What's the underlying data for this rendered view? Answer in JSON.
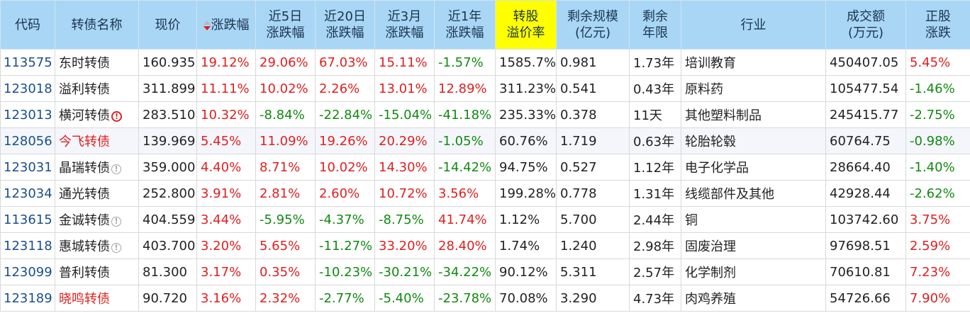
{
  "headers": {
    "code": "代码",
    "name": "转债名称",
    "price": "现价",
    "chg": "涨跌幅",
    "chg5d_1": "近5日",
    "chg5d_2": "涨跌幅",
    "chg20d_1": "近20日",
    "chg20d_2": "涨跌幅",
    "chg3m_1": "近3月",
    "chg3m_2": "涨跌幅",
    "chg1y_1": "近1年",
    "chg1y_2": "涨跌幅",
    "premium_1": "转股",
    "premium_2": "溢价率",
    "scale_1": "剩余规模",
    "scale_2": "(亿元)",
    "years_1": "剩余",
    "years_2": "年限",
    "industry": "行业",
    "volume_1": "成交额",
    "volume_2": "(万元)",
    "stock_1": "正股",
    "stock_2": "涨跌"
  },
  "colors": {
    "header_bg": "#a9d6f5",
    "highlight": "#ffff00",
    "up": "#e02020",
    "down": "#108a10",
    "code": "#1a4f8c"
  },
  "rows": [
    {
      "code": "113575",
      "name": "东时转债",
      "price": "160.935",
      "chg": "19.12%",
      "chg5d": "29.06%",
      "chg20d": "67.03%",
      "chg3m": "15.11%",
      "chg1y": "-1.57%",
      "premium": "1585.7%",
      "scale": "0.981",
      "years": "1.73年",
      "industry": "培训教育",
      "volume": "450407.05",
      "stock": "5.45%"
    },
    {
      "code": "123018",
      "name": "溢利转债",
      "price": "311.899",
      "chg": "11.11%",
      "chg5d": "10.02%",
      "chg20d": "2.26%",
      "chg3m": "13.01%",
      "chg1y": "12.89%",
      "premium": "311.23%",
      "scale": "0.541",
      "years": "0.43年",
      "industry": "原料药",
      "volume": "105477.54",
      "stock": "-1.46%"
    },
    {
      "code": "123013",
      "name": "横河转债",
      "price": "283.510",
      "chg": "10.32%",
      "chg5d": "-8.84%",
      "chg20d": "-22.84%",
      "chg3m": "-15.04%",
      "chg1y": "-41.18%",
      "premium": "235.33%",
      "scale": "0.378",
      "years": "11天",
      "industry": "其他塑料制品",
      "volume": "245415.77",
      "stock": "-2.75%"
    },
    {
      "code": "128056",
      "name": "今飞转债",
      "price": "139.969",
      "chg": "5.45%",
      "chg5d": "11.09%",
      "chg20d": "19.26%",
      "chg3m": "20.29%",
      "chg1y": "-1.05%",
      "premium": "60.76%",
      "scale": "1.719",
      "years": "0.63年",
      "industry": "轮胎轮毂",
      "volume": "60764.75",
      "stock": "-0.98%"
    },
    {
      "code": "123031",
      "name": "晶瑞转债",
      "price": "359.000",
      "chg": "4.40%",
      "chg5d": "8.71%",
      "chg20d": "10.02%",
      "chg3m": "14.30%",
      "chg1y": "-14.42%",
      "premium": "94.75%",
      "scale": "0.527",
      "years": "1.12年",
      "industry": "电子化学品",
      "volume": "28664.40",
      "stock": "-1.40%"
    },
    {
      "code": "123034",
      "name": "通光转债",
      "price": "252.800",
      "chg": "3.91%",
      "chg5d": "2.81%",
      "chg20d": "2.60%",
      "chg3m": "10.72%",
      "chg1y": "3.56%",
      "premium": "199.28%",
      "scale": "0.778",
      "years": "1.31年",
      "industry": "线缆部件及其他",
      "volume": "42928.44",
      "stock": "-2.62%"
    },
    {
      "code": "113615",
      "name": "金诚转债",
      "price": "404.559",
      "chg": "3.44%",
      "chg5d": "-5.95%",
      "chg20d": "-4.37%",
      "chg3m": "-8.75%",
      "chg1y": "41.74%",
      "premium": "1.12%",
      "scale": "5.700",
      "years": "2.44年",
      "industry": "铜",
      "volume": "103742.60",
      "stock": "3.75%"
    },
    {
      "code": "123118",
      "name": "惠城转债",
      "price": "403.700",
      "chg": "3.20%",
      "chg5d": "5.65%",
      "chg20d": "-11.27%",
      "chg3m": "33.20%",
      "chg1y": "28.40%",
      "premium": "1.74%",
      "scale": "1.240",
      "years": "2.98年",
      "industry": "固废治理",
      "volume": "97698.51",
      "stock": "2.59%"
    },
    {
      "code": "123099",
      "name": "普利转债",
      "price": "81.300",
      "chg": "3.17%",
      "chg5d": "0.35%",
      "chg20d": "-10.23%",
      "chg3m": "-30.21%",
      "chg1y": "-34.22%",
      "premium": "90.12%",
      "scale": "5.311",
      "years": "2.57年",
      "industry": "化学制剂",
      "volume": "70610.81",
      "stock": "7.23%"
    },
    {
      "code": "123189",
      "name": "晓鸣转债",
      "price": "90.720",
      "chg": "3.16%",
      "chg5d": "2.32%",
      "chg20d": "-2.77%",
      "chg3m": "-5.40%",
      "chg1y": "-23.78%",
      "premium": "70.08%",
      "scale": "3.290",
      "years": "4.73年",
      "industry": "肉鸡养殖",
      "volume": "54726.66",
      "stock": "7.90%"
    }
  ]
}
